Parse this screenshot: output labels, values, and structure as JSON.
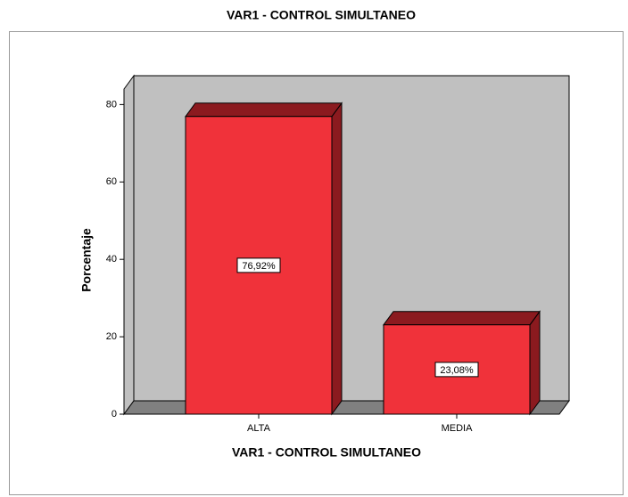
{
  "chart_data": {
    "type": "bar3d",
    "title": "VAR1 - CONTROL SIMULTANEO",
    "x_label": "VAR1 - CONTROL SIMULTANEO",
    "y_label": "Porcentaje",
    "categories": [
      "ALTA",
      "MEDIA"
    ],
    "values": [
      76.92,
      23.08
    ],
    "value_labels": [
      "76,92%",
      "23,08%"
    ],
    "color": "#f0323a",
    "ylim": [
      0,
      84
    ],
    "yticks": [
      0,
      20,
      40,
      60,
      80
    ]
  }
}
